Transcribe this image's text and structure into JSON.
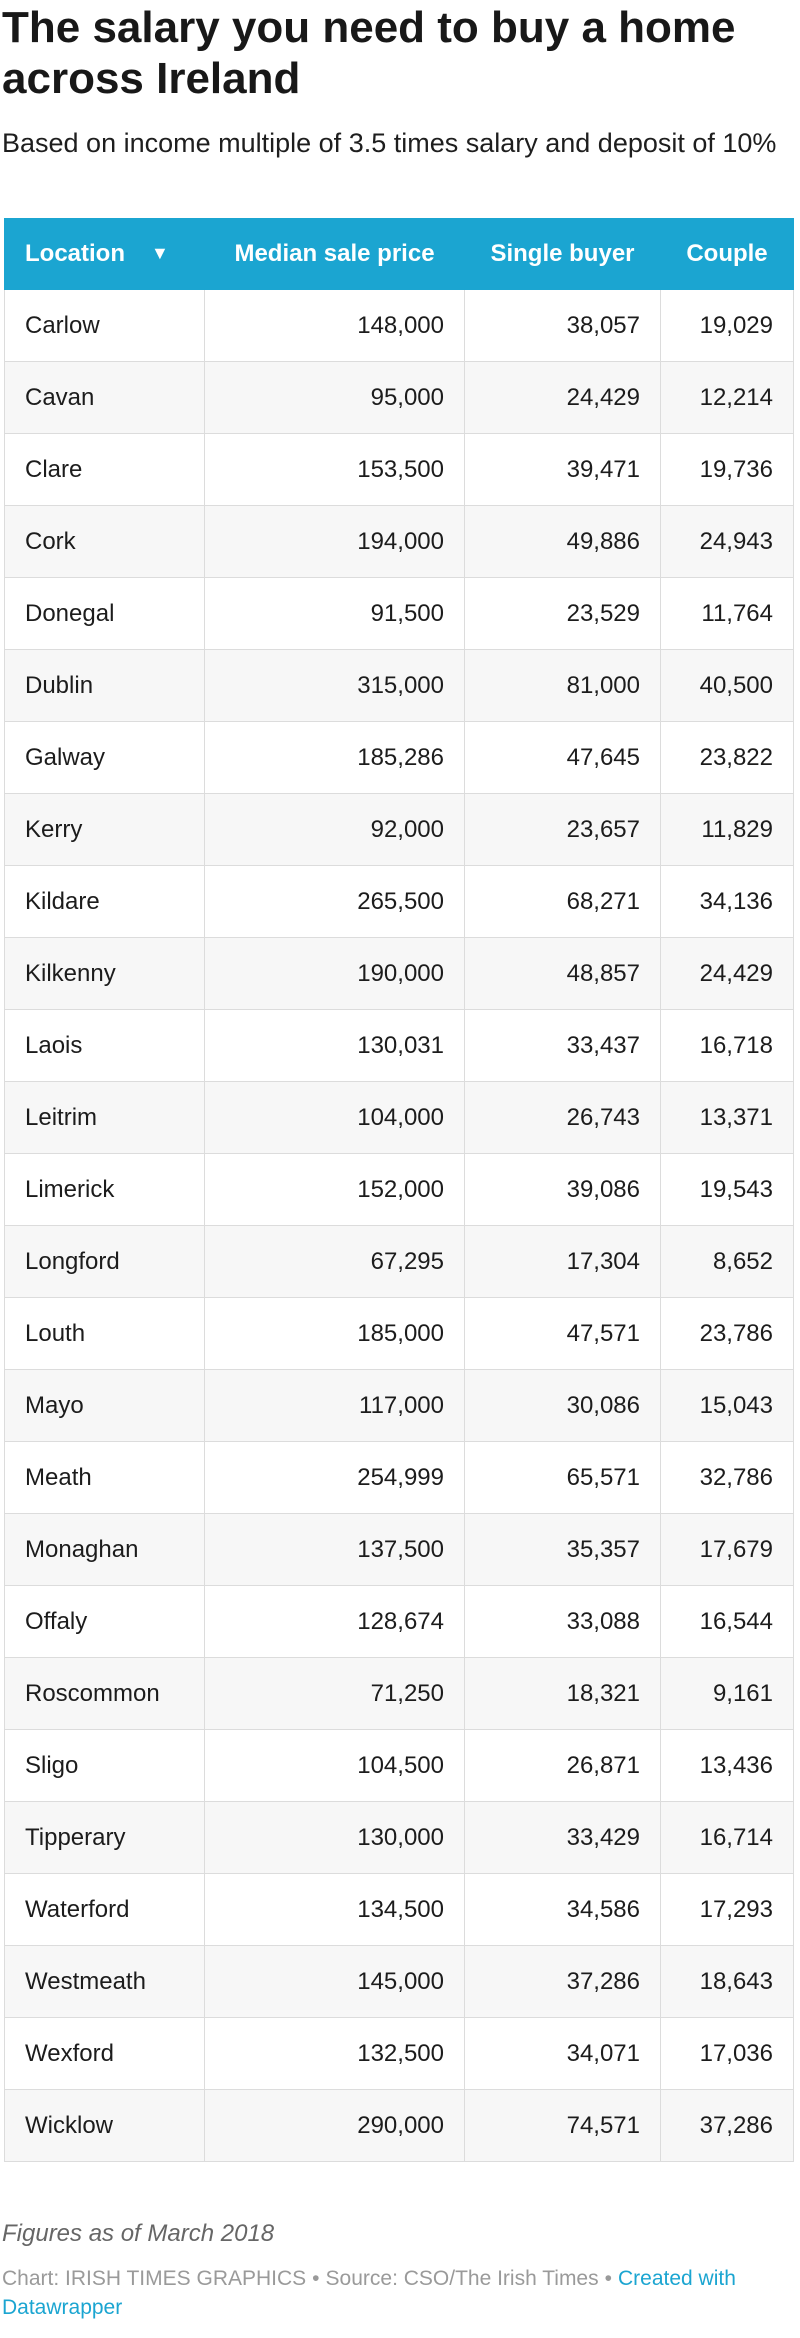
{
  "chart_data": {
    "type": "table",
    "title": "The salary you need to buy a home across Ireland",
    "subtitle": "Based on income multiple of 3.5 times salary and deposit of 10%",
    "columns": [
      "Location",
      "Median sale price",
      "Single buyer",
      "Couple"
    ],
    "sort_indicator": "▼",
    "rows": [
      [
        "Carlow",
        "148,000",
        "38,057",
        "19,029"
      ],
      [
        "Cavan",
        "95,000",
        "24,429",
        "12,214"
      ],
      [
        "Clare",
        "153,500",
        "39,471",
        "19,736"
      ],
      [
        "Cork",
        "194,000",
        "49,886",
        "24,943"
      ],
      [
        "Donegal",
        "91,500",
        "23,529",
        "11,764"
      ],
      [
        "Dublin",
        "315,000",
        "81,000",
        "40,500"
      ],
      [
        "Galway",
        "185,286",
        "47,645",
        "23,822"
      ],
      [
        "Kerry",
        "92,000",
        "23,657",
        "11,829"
      ],
      [
        "Kildare",
        "265,500",
        "68,271",
        "34,136"
      ],
      [
        "Kilkenny",
        "190,000",
        "48,857",
        "24,429"
      ],
      [
        "Laois",
        "130,031",
        "33,437",
        "16,718"
      ],
      [
        "Leitrim",
        "104,000",
        "26,743",
        "13,371"
      ],
      [
        "Limerick",
        "152,000",
        "39,086",
        "19,543"
      ],
      [
        "Longford",
        "67,295",
        "17,304",
        "8,652"
      ],
      [
        "Louth",
        "185,000",
        "47,571",
        "23,786"
      ],
      [
        "Mayo",
        "117,000",
        "30,086",
        "15,043"
      ],
      [
        "Meath",
        "254,999",
        "65,571",
        "32,786"
      ],
      [
        "Monaghan",
        "137,500",
        "35,357",
        "17,679"
      ],
      [
        "Offaly",
        "128,674",
        "33,088",
        "16,544"
      ],
      [
        "Roscommon",
        "71,250",
        "18,321",
        "9,161"
      ],
      [
        "Sligo",
        "104,500",
        "26,871",
        "13,436"
      ],
      [
        "Tipperary",
        "130,000",
        "33,429",
        "16,714"
      ],
      [
        "Waterford",
        "134,500",
        "34,586",
        "17,293"
      ],
      [
        "Westmeath",
        "145,000",
        "37,286",
        "18,643"
      ],
      [
        "Wexford",
        "132,500",
        "34,071",
        "17,036"
      ],
      [
        "Wicklow",
        "290,000",
        "74,571",
        "37,286"
      ]
    ],
    "header_color": "#1ba5d1"
  },
  "footer": {
    "notes": "Figures as of March 2018",
    "chart_credit": "Chart: IRISH TIMES GRAPHICS",
    "separator": "•",
    "source": "Source: CSO/The Irish Times",
    "created_with": "Created with Datawrapper",
    "link_color": "#1ba5d1"
  }
}
